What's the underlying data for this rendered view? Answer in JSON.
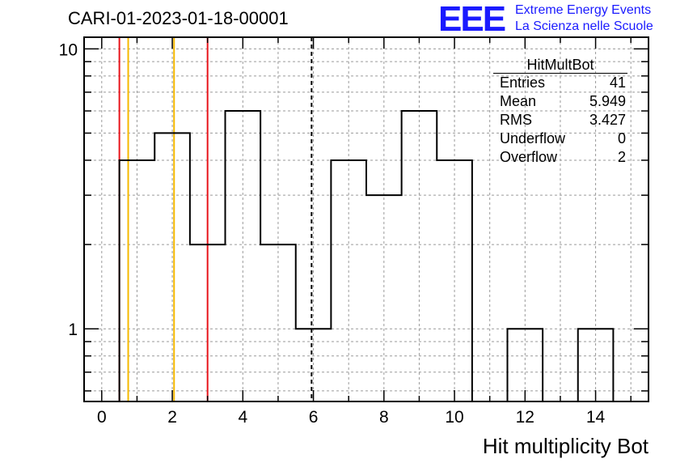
{
  "header": {
    "title": "CARI-01-2023-01-18-00001",
    "logo": "EEE",
    "logo_line1": "Extreme Energy Events",
    "logo_line2": "La Scienza nelle Scuole"
  },
  "stats": {
    "title": "HitMultBot",
    "rows": [
      {
        "label": "Entries",
        "value": "41"
      },
      {
        "label": "Mean",
        "value": "5.949"
      },
      {
        "label": "RMS",
        "value": "3.427"
      },
      {
        "label": "Underflow",
        "value": "0"
      },
      {
        "label": "Overflow",
        "value": "2"
      }
    ]
  },
  "chart_data": {
    "type": "bar",
    "histogram": true,
    "xlabel": "Hit multiplicity Bot",
    "ylabel": "",
    "xlim": [
      -0.5,
      15.5
    ],
    "ylim": [
      0.55,
      11
    ],
    "yscale": "log",
    "grid": true,
    "xticks": [
      0,
      2,
      4,
      6,
      8,
      10,
      12,
      14
    ],
    "yticks": [
      1,
      10
    ],
    "bins": [
      {
        "x": 0,
        "value": 0
      },
      {
        "x": 1,
        "value": 4
      },
      {
        "x": 2,
        "value": 5
      },
      {
        "x": 3,
        "value": 2
      },
      {
        "x": 4,
        "value": 6
      },
      {
        "x": 5,
        "value": 2
      },
      {
        "x": 6,
        "value": 1
      },
      {
        "x": 7,
        "value": 4
      },
      {
        "x": 8,
        "value": 3
      },
      {
        "x": 9,
        "value": 6
      },
      {
        "x": 10,
        "value": 4
      },
      {
        "x": 11,
        "value": 0
      },
      {
        "x": 12,
        "value": 1
      },
      {
        "x": 13,
        "value": 0
      },
      {
        "x": 14,
        "value": 1
      },
      {
        "x": 15,
        "value": 0
      }
    ],
    "vlines": [
      {
        "x": 0.5,
        "color": "#e8141b",
        "style": "solid"
      },
      {
        "x": 0.75,
        "color": "#f5b800",
        "style": "solid"
      },
      {
        "x": 2.05,
        "color": "#f5b800",
        "style": "solid"
      },
      {
        "x": 3.0,
        "color": "#e8141b",
        "style": "solid"
      },
      {
        "x": 5.949,
        "color": "#000000",
        "style": "dashed"
      }
    ]
  }
}
